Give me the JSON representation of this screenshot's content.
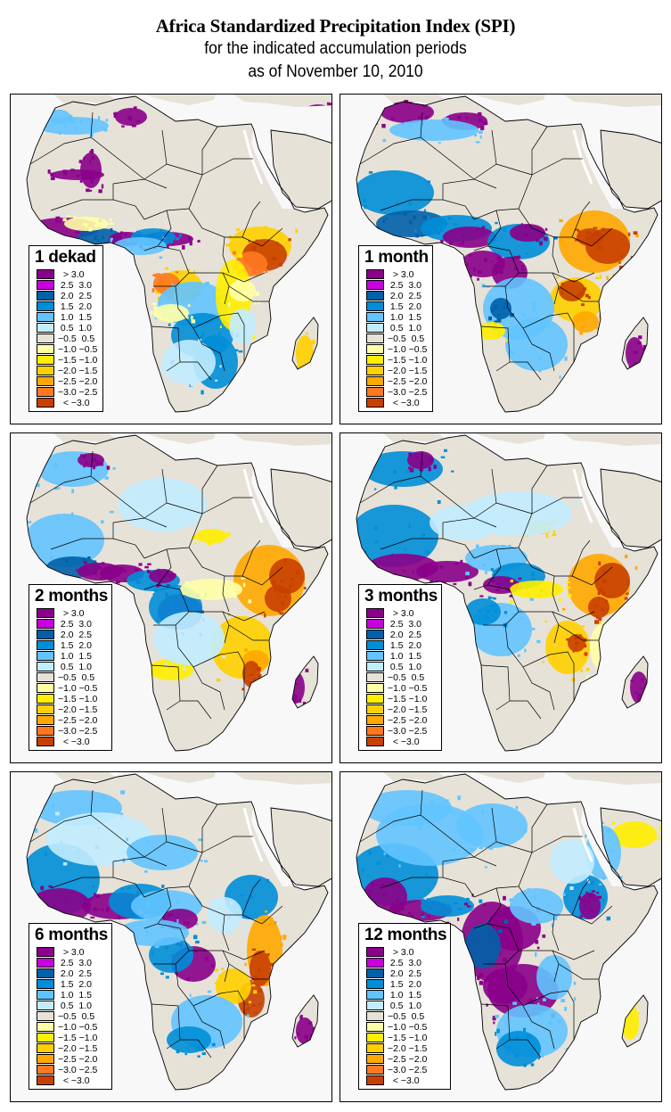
{
  "header": {
    "title": "Africa Standardized Precipitation Index (SPI)",
    "subtitle": "for the indicated accumulation periods",
    "date_line": "as of November 10, 2010"
  },
  "legend": {
    "classes": [
      {
        "label": "  > 3.0",
        "color": "#8a008a"
      },
      {
        "label": " 2.5  3.0",
        "color": "#c800e0"
      },
      {
        "label": " 2.0  2.5",
        "color": "#0060a8"
      },
      {
        "label": " 1.5  2.0",
        "color": "#008ed8"
      },
      {
        "label": " 1.0  1.5",
        "color": "#62c4ff"
      },
      {
        "label": " 0.5  1.0",
        "color": "#c2ecff"
      },
      {
        "label": "−0.5  0.5",
        "color": "#e6e2d8"
      },
      {
        "label": "−1.0 −0.5",
        "color": "#ffffa8"
      },
      {
        "label": "−1.5 −1.0",
        "color": "#ffee00"
      },
      {
        "label": "−2.0 −1.5",
        "color": "#ffd000"
      },
      {
        "label": "−2.5 −2.0",
        "color": "#ffa800"
      },
      {
        "label": "−3.0 −2.5",
        "color": "#ff7820"
      },
      {
        "label": "  < −3.0",
        "color": "#c84000"
      }
    ]
  },
  "panels": [
    {
      "label": "1 dekad",
      "dominant_wet": [
        "West Africa coast",
        "Central Sahel belt",
        "Southern Africa east"
      ],
      "dominant_dry": [
        "Ethiopia",
        "Somalia",
        "Angola/Congo"
      ]
    },
    {
      "label": "1 month",
      "dominant_wet": [
        "West Africa",
        "Central Africa",
        "Madagascar south"
      ],
      "dominant_dry": [
        "Ethiopia",
        "Somalia",
        "Kenya",
        "Tanzania"
      ]
    },
    {
      "label": "2 months",
      "dominant_wet": [
        "West Africa coast",
        "Congo basin"
      ],
      "dominant_dry": [
        "Horn of Africa",
        "Tanzania",
        "Mozambique"
      ]
    },
    {
      "label": "3 months",
      "dominant_wet": [
        "West Africa",
        "Sahel",
        "Central Africa"
      ],
      "dominant_dry": [
        "Horn of Africa",
        "Tanzania"
      ]
    },
    {
      "label": "6 months",
      "dominant_wet": [
        "West Africa",
        "Sahel",
        "Central Africa"
      ],
      "dominant_dry": [
        "Kenya",
        "Tanzania",
        "Mozambique"
      ]
    },
    {
      "label": "12 months",
      "dominant_wet": [
        "West Africa",
        "Congo basin",
        "Zambia"
      ],
      "dominant_dry": [
        "Madagascar west coast",
        "Arabia"
      ]
    }
  ]
}
